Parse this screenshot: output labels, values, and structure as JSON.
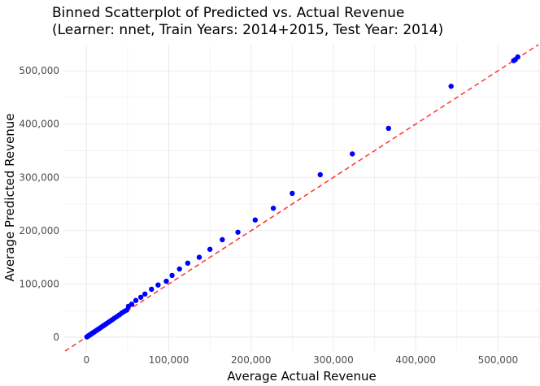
{
  "chart_data": {
    "type": "scatter",
    "title": "Binned Scatterplot of Predicted vs. Actual Revenue",
    "subtitle": "(Learner: nnet, Train Years: 2014+2015, Test Year: 2014)",
    "xlabel": "Average Actual Revenue",
    "ylabel": "Average Predicted Revenue",
    "xlim": [
      -28000,
      551000
    ],
    "ylim": [
      -26000,
      549000
    ],
    "grid": true,
    "x_ticks": [
      0,
      100000,
      200000,
      300000,
      400000,
      500000
    ],
    "x_tick_labels": [
      "0",
      "100,000",
      "200,000",
      "300,000",
      "400,000",
      "500,000"
    ],
    "y_ticks": [
      0,
      100000,
      200000,
      300000,
      400000,
      500000
    ],
    "y_tick_labels": [
      "0",
      "100,000",
      "200,000",
      "300,000",
      "400,000",
      "500,000"
    ],
    "reference_line": {
      "type": "y=x",
      "color": "#ff3333",
      "style": "dashed"
    },
    "point_color": "#0000ff",
    "points": [
      [
        500,
        600
      ],
      [
        1500,
        1600
      ],
      [
        2500,
        2700
      ],
      [
        3500,
        3700
      ],
      [
        4500,
        4700
      ],
      [
        5500,
        5800
      ],
      [
        6500,
        6900
      ],
      [
        8000,
        8400
      ],
      [
        9500,
        10000
      ],
      [
        11000,
        11500
      ],
      [
        12500,
        13100
      ],
      [
        14000,
        14700
      ],
      [
        16000,
        16700
      ],
      [
        18000,
        18800
      ],
      [
        20000,
        21000
      ],
      [
        22000,
        23000
      ],
      [
        24000,
        25200
      ],
      [
        26500,
        27800
      ],
      [
        29000,
        30400
      ],
      [
        31500,
        33000
      ],
      [
        34000,
        35700
      ],
      [
        37000,
        38800
      ],
      [
        40000,
        42000
      ],
      [
        43000,
        45500
      ],
      [
        46000,
        48500
      ],
      [
        49000,
        51000
      ],
      [
        51000,
        58000
      ],
      [
        55000,
        62000
      ],
      [
        60000,
        69000
      ],
      [
        66000,
        75000
      ],
      [
        71000,
        81000
      ],
      [
        79000,
        90000
      ],
      [
        87000,
        98000
      ],
      [
        97000,
        105000
      ],
      [
        104000,
        116000
      ],
      [
        113000,
        128000
      ],
      [
        123000,
        139000
      ],
      [
        137000,
        150000
      ],
      [
        150000,
        165000
      ],
      [
        165000,
        183000
      ],
      [
        184000,
        197000
      ],
      [
        205000,
        220000
      ],
      [
        227000,
        242000
      ],
      [
        250000,
        270000
      ],
      [
        284000,
        305000
      ],
      [
        323000,
        344000
      ],
      [
        367000,
        392000
      ],
      [
        443000,
        471000
      ],
      [
        519000,
        519000
      ],
      [
        521000,
        521000
      ],
      [
        524000,
        526000
      ]
    ]
  }
}
